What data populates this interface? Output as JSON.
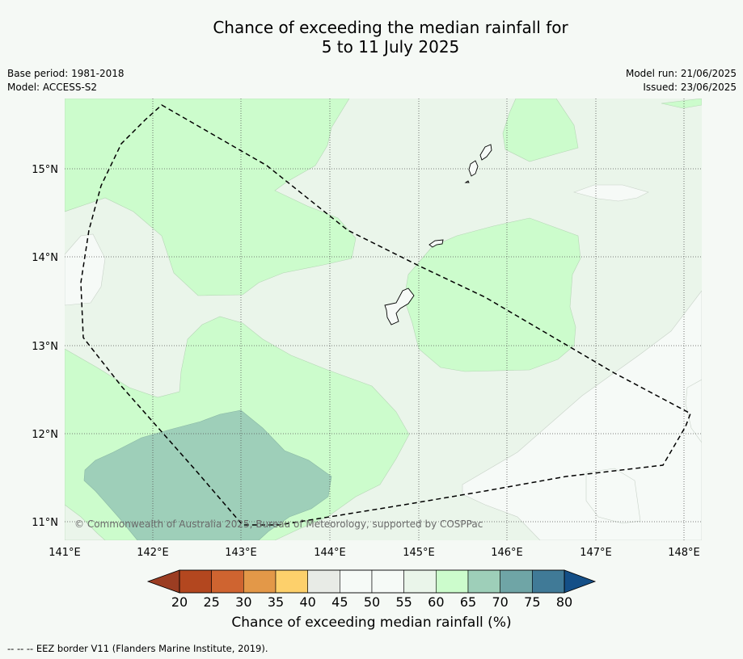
{
  "title": {
    "line1": "Chance of exceeding the median rainfall for",
    "line2": "5 to 11 July 2025"
  },
  "meta_left": {
    "base_period": "Base period: 1981-2018",
    "model": "Model: ACCESS-S2"
  },
  "meta_right": {
    "model_run": "Model run: 21/06/2025",
    "issued": "Issued: 23/06/2025"
  },
  "map": {
    "lat_labels": [
      "15°N",
      "14°N",
      "13°N",
      "12°N",
      "11°N"
    ],
    "lon_labels": [
      "141°E",
      "142°E",
      "143°E",
      "144°E",
      "145°E",
      "146°E",
      "147°E",
      "148°E"
    ],
    "copyright": "© Commonwealth of Australia 2025, Bureau of Meteorology, supported by COSPPac"
  },
  "colorbar": {
    "ticks": [
      "20",
      "25",
      "30",
      "35",
      "40",
      "45",
      "50",
      "55",
      "60",
      "65",
      "70",
      "75",
      "80"
    ],
    "colors": [
      "#b3471f",
      "#cf6430",
      "#e39848",
      "#fdd06b",
      "#e8ebe6",
      "#f6faf7",
      "#f6faf7",
      "#eaf5ea",
      "#ccfccc",
      "#9ecfb9",
      "#6fa5a6",
      "#407a97"
    ],
    "under_color": "#9b3d22",
    "over_color": "#144f87",
    "label": "Chance of exceeding median rainfall (%)"
  },
  "legend_colors": {
    "c55_60": "#eaf5ea",
    "c60_65": "#ccfccc",
    "c65_70": "#9ecfb9",
    "c50_55": "#f6faf7"
  },
  "footer": {
    "eez": "--  --  -- EEZ border V11 (Flanders Marine Institute, 2019)."
  }
}
